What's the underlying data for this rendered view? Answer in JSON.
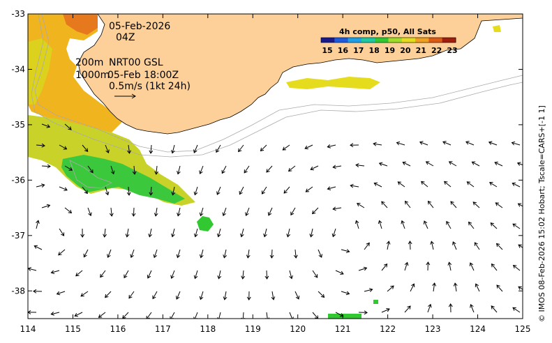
{
  "map": {
    "date": "05-Feb-2026",
    "hour": "04Z",
    "contour_200": "200m",
    "contour_1000": "1000m",
    "nrt_label": "NRT00 GSL",
    "nrt_time": "05-Feb 18:00Z",
    "scale_label": "0.5m/s (1kt 24h)",
    "credit": "© IMOS 08-Feb-2026 15:02 Hobart; Tscale=CARS+[-1 1]",
    "colorbar": {
      "title": "4h comp, p50, All Sats",
      "labels": [
        "15",
        "16",
        "17",
        "18",
        "19",
        "20",
        "21",
        "22",
        "23"
      ],
      "colors": [
        "#1a1a8c",
        "#1e5adc",
        "#1ea0e6",
        "#1ec8a0",
        "#32c832",
        "#a0dc28",
        "#e6dc1e",
        "#f0a01e",
        "#dc5a14",
        "#a01e0a"
      ]
    },
    "axes": {
      "lon_ticks": [
        "114",
        "115",
        "116",
        "117",
        "118",
        "119",
        "120",
        "121",
        "122",
        "123",
        "124",
        "125"
      ],
      "lat_ticks": [
        "-33",
        "-34",
        "-35",
        "-36",
        "-37",
        "-38"
      ],
      "lon_range": [
        114,
        125
      ],
      "lat_range": [
        -38.5,
        -33
      ]
    },
    "land_color": "#fdd09a",
    "eddies": [
      {
        "lon": 114.55,
        "lat": -37.0,
        "direction": "cw"
      },
      {
        "lon": 121.0,
        "lat": -36.9,
        "direction": "ccw"
      }
    ]
  }
}
